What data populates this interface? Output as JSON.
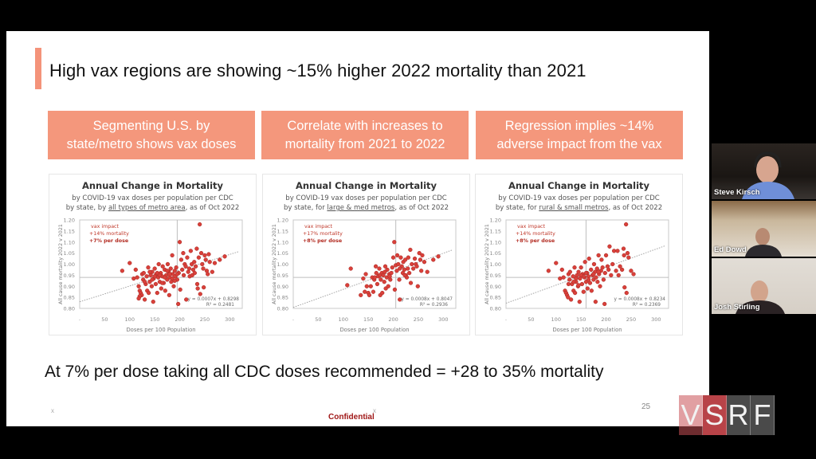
{
  "slide": {
    "title": "High vax regions are showing ~15% higher 2022 mortality than 2021",
    "boxes": [
      {
        "line1": "Segmenting U.S. by",
        "line2": "state/metro shows vax doses"
      },
      {
        "line1": "Correlate with increases to",
        "line2": "mortality from 2021 to 2022"
      },
      {
        "line1": "Regression implies ~14%",
        "line2": "adverse impact from the vax"
      }
    ],
    "bottom_text": "At 7% per dose taking all CDC doses recommended = +28 to 35% mortality",
    "footer": {
      "marker_left": "x",
      "marker_center": "x",
      "confidential": "Confidential",
      "page_number": "25"
    },
    "accent_color": "#f4977c"
  },
  "participants": [
    {
      "name": "Steve Kirsch"
    },
    {
      "name": "Ed Dowd"
    },
    {
      "name": "Josh Stirling"
    }
  ],
  "watermark": {
    "letters": [
      "V",
      "S",
      "R",
      "F"
    ]
  },
  "chart_data": [
    {
      "type": "scatter",
      "title": "Annual Change in Mortality",
      "subtitle1": "by COVID-19 vax doses per population per CDC",
      "subtitle2_pre": "by state, by ",
      "subtitle2_u": "all types of metro area",
      "subtitle2_post": ", as of Oct 2022",
      "xlabel": "Doses per 100 Population",
      "ylabel": "All cause mortality 2022 v 2021",
      "xlim": [
        0,
        325
      ],
      "ylim": [
        0.8,
        1.2
      ],
      "xticks": [
        50,
        100,
        150,
        200,
        250,
        300
      ],
      "yticks": [
        "0.80",
        "0.85",
        "0.90",
        "0.95",
        "1.00",
        "1.05",
        "1.10",
        "1.15",
        "1.20"
      ],
      "annotation": [
        "vax impact",
        "+14% mortality",
        "+7% per dose"
      ],
      "ref_x": 195,
      "ref_y": 0.94,
      "trendline": {
        "slope": 0.0007,
        "intercept": 0.8298,
        "equation": "y = 0.0007x + 0.8298",
        "r2": "R² = 0.2481"
      },
      "points": [
        [
          85,
          0.97
        ],
        [
          100,
          1.005
        ],
        [
          108,
          0.935
        ],
        [
          112,
          0.975
        ],
        [
          115,
          0.94
        ],
        [
          118,
          0.9
        ],
        [
          120,
          0.88
        ],
        [
          122,
          0.87
        ],
        [
          124,
          0.86
        ],
        [
          125,
          0.955
        ],
        [
          127,
          0.93
        ],
        [
          128,
          0.96
        ],
        [
          130,
          0.84
        ],
        [
          132,
          0.91
        ],
        [
          134,
          0.945
        ],
        [
          135,
          0.88
        ],
        [
          137,
          0.985
        ],
        [
          138,
          0.87
        ],
        [
          140,
          0.92
        ],
        [
          142,
          0.95
        ],
        [
          144,
          0.9
        ],
        [
          145,
          0.965
        ],
        [
          147,
          0.83
        ],
        [
          148,
          0.935
        ],
        [
          150,
          0.98
        ],
        [
          152,
          0.91
        ],
        [
          153,
          0.955
        ],
        [
          155,
          0.87
        ],
        [
          157,
          0.94
        ],
        [
          158,
          1.0
        ],
        [
          160,
          0.92
        ],
        [
          162,
          0.96
        ],
        [
          163,
          0.89
        ],
        [
          165,
          0.945
        ],
        [
          166,
          0.99
        ],
        [
          168,
          0.915
        ],
        [
          170,
          0.975
        ],
        [
          171,
          0.88
        ],
        [
          173,
          0.95
        ],
        [
          175,
          0.93
        ],
        [
          176,
          1.0
        ],
        [
          178,
          0.965
        ],
        [
          179,
          0.86
        ],
        [
          180,
          0.94
        ],
        [
          182,
          0.98
        ],
        [
          183,
          0.92
        ],
        [
          185,
          1.04
        ],
        [
          186,
          0.955
        ],
        [
          188,
          0.9
        ],
        [
          190,
          0.97
        ],
        [
          191,
          0.945
        ],
        [
          193,
          0.985
        ],
        [
          195,
          0.93
        ],
        [
          197,
          0.82
        ],
        [
          198,
          0.96
        ],
        [
          200,
          1.1
        ],
        [
          201,
          0.885
        ],
        [
          203,
          1.02
        ],
        [
          205,
          0.975
        ],
        [
          207,
          1.05
        ],
        [
          208,
          0.95
        ],
        [
          210,
          1.0
        ],
        [
          212,
          0.99
        ],
        [
          213,
          0.84
        ],
        [
          215,
          1.03
        ],
        [
          217,
          0.965
        ],
        [
          219,
          0.98
        ],
        [
          220,
          0.945
        ],
        [
          222,
          1.06
        ],
        [
          224,
          1.0
        ],
        [
          225,
          0.95
        ],
        [
          227,
          0.975
        ],
        [
          229,
          1.01
        ],
        [
          230,
          0.96
        ],
        [
          232,
          0.99
        ],
        [
          234,
          1.07
        ],
        [
          235,
          0.91
        ],
        [
          236,
          0.89
        ],
        [
          238,
          1.03
        ],
        [
          240,
          1.18
        ],
        [
          241,
          0.865
        ],
        [
          243,
          1.05
        ],
        [
          245,
          1.0
        ],
        [
          247,
          0.98
        ],
        [
          248,
          0.895
        ],
        [
          250,
          1.04
        ],
        [
          252,
          1.02
        ],
        [
          254,
          0.97
        ],
        [
          256,
          0.955
        ],
        [
          258,
          1.045
        ],
        [
          260,
          1.01
        ],
        [
          265,
          0.965
        ],
        [
          270,
          1.005
        ],
        [
          280,
          1.02
        ],
        [
          290,
          1.035
        ],
        [
          145,
          0.93
        ],
        [
          155,
          0.96
        ],
        [
          165,
          0.915
        ],
        [
          175,
          0.97
        ],
        [
          185,
          0.935
        ],
        [
          195,
          0.955
        ],
        [
          160,
          0.95
        ],
        [
          170,
          0.94
        ],
        [
          180,
          0.955
        ],
        [
          190,
          0.925
        ],
        [
          150,
          0.945
        ],
        [
          140,
          0.965
        ],
        [
          130,
          0.92
        ],
        [
          120,
          0.855
        ],
        [
          118,
          0.845
        ]
      ]
    },
    {
      "type": "scatter",
      "title": "Annual Change in Mortality",
      "subtitle1": "by COVID-19 vax doses per population per CDC",
      "subtitle2_pre": "by state, for ",
      "subtitle2_u": "large & med metros",
      "subtitle2_post": ", as of Oct 2022",
      "xlabel": "Doses per 100 Population",
      "ylabel": "All cause mortality 2022 v 2021",
      "xlim": [
        0,
        325
      ],
      "ylim": [
        0.8,
        1.2
      ],
      "xticks": [
        50,
        100,
        150,
        200,
        250,
        300
      ],
      "yticks": [
        "0.80",
        "0.85",
        "0.90",
        "0.95",
        "1.00",
        "1.05",
        "1.10",
        "1.15",
        "1.20"
      ],
      "annotation": [
        "vax impact",
        "+17% mortality",
        "+8% per dose"
      ],
      "ref_x": 205,
      "ref_y": 0.94,
      "trendline": {
        "slope": 0.0008,
        "intercept": 0.8047,
        "equation": "y = 0.0008x + 0.8047",
        "r2": "R² = 0.2936"
      },
      "points": [
        [
          108,
          0.905
        ],
        [
          115,
          0.98
        ],
        [
          135,
          0.86
        ],
        [
          140,
          0.935
        ],
        [
          143,
          0.875
        ],
        [
          145,
          0.955
        ],
        [
          147,
          0.9
        ],
        [
          150,
          0.87
        ],
        [
          152,
          0.86
        ],
        [
          155,
          0.9
        ],
        [
          158,
          0.94
        ],
        [
          160,
          0.875
        ],
        [
          162,
          0.93
        ],
        [
          165,
          0.99
        ],
        [
          166,
          0.96
        ],
        [
          168,
          0.91
        ],
        [
          170,
          0.945
        ],
        [
          172,
          0.98
        ],
        [
          174,
          0.86
        ],
        [
          175,
          0.93
        ],
        [
          177,
          0.96
        ],
        [
          178,
          0.87
        ],
        [
          180,
          0.95
        ],
        [
          182,
          0.92
        ],
        [
          184,
          0.99
        ],
        [
          185,
          0.89
        ],
        [
          187,
          0.94
        ],
        [
          188,
          0.975
        ],
        [
          190,
          0.9
        ],
        [
          192,
          0.955
        ],
        [
          194,
          0.93
        ],
        [
          196,
          0.96
        ],
        [
          198,
          0.985
        ],
        [
          200,
          1.03
        ],
        [
          202,
          1.1
        ],
        [
          203,
          0.885
        ],
        [
          205,
          0.995
        ],
        [
          207,
          0.97
        ],
        [
          208,
          1.04
        ],
        [
          210,
          1.0
        ],
        [
          212,
          0.93
        ],
        [
          213,
          0.84
        ],
        [
          215,
          1.03
        ],
        [
          217,
          0.99
        ],
        [
          219,
          0.96
        ],
        [
          220,
          1.01
        ],
        [
          222,
          0.975
        ],
        [
          224,
          1.02
        ],
        [
          225,
          0.95
        ],
        [
          227,
          0.94
        ],
        [
          229,
          0.98
        ],
        [
          230,
          1.03
        ],
        [
          232,
          0.96
        ],
        [
          234,
          1.065
        ],
        [
          235,
          0.915
        ],
        [
          237,
          1.0
        ],
        [
          240,
          0.98
        ],
        [
          243,
          1.025
        ],
        [
          245,
          1.0
        ],
        [
          247,
          0.99
        ],
        [
          249,
          0.9
        ],
        [
          252,
          1.05
        ],
        [
          254,
          1.02
        ],
        [
          256,
          0.97
        ],
        [
          258,
          1.04
        ],
        [
          262,
          1.01
        ],
        [
          268,
          0.965
        ],
        [
          280,
          1.02
        ],
        [
          290,
          1.035
        ],
        [
          163,
          0.94
        ],
        [
          173,
          0.95
        ],
        [
          183,
          0.965
        ],
        [
          193,
          0.945
        ],
        [
          213,
          0.98
        ],
        [
          223,
          0.95
        ]
      ]
    },
    {
      "type": "scatter",
      "title": "Annual Change in Mortality",
      "subtitle1": "by COVID-19 vax doses per population per CDC",
      "subtitle2_pre": "by state, for ",
      "subtitle2_u": "rural & small metros",
      "subtitle2_post": ", as of Oct 2022",
      "xlabel": "Doses per 100 Population",
      "ylabel": "All cause mortality 2022 v 2021",
      "xlim": [
        0,
        325
      ],
      "ylim": [
        0.8,
        1.2
      ],
      "xticks": [
        50,
        100,
        150,
        200,
        250,
        300
      ],
      "yticks": [
        "0.80",
        "0.85",
        "0.90",
        "0.95",
        "1.00",
        "1.05",
        "1.10",
        "1.15",
        "1.20"
      ],
      "annotation": [
        "vax impact",
        "+14% mortality",
        "+8% per dose"
      ],
      "ref_x": 160,
      "ref_y": 0.94,
      "trendline": {
        "slope": 0.0008,
        "intercept": 0.8234,
        "equation": "y = 0.0008x + 0.8234",
        "r2": "R² = 0.2369"
      },
      "points": [
        [
          85,
          0.97
        ],
        [
          100,
          1.005
        ],
        [
          108,
          0.935
        ],
        [
          112,
          0.975
        ],
        [
          115,
          0.94
        ],
        [
          118,
          0.88
        ],
        [
          120,
          0.87
        ],
        [
          122,
          0.86
        ],
        [
          124,
          0.85
        ],
        [
          125,
          0.955
        ],
        [
          127,
          0.93
        ],
        [
          128,
          0.965
        ],
        [
          130,
          0.84
        ],
        [
          132,
          0.91
        ],
        [
          134,
          0.945
        ],
        [
          135,
          0.88
        ],
        [
          137,
          0.985
        ],
        [
          138,
          0.87
        ],
        [
          140,
          0.92
        ],
        [
          142,
          0.95
        ],
        [
          144,
          0.9
        ],
        [
          145,
          0.965
        ],
        [
          147,
          0.83
        ],
        [
          148,
          0.935
        ],
        [
          150,
          0.985
        ],
        [
          152,
          0.91
        ],
        [
          153,
          0.955
        ],
        [
          155,
          0.875
        ],
        [
          157,
          0.94
        ],
        [
          158,
          1.01
        ],
        [
          160,
          0.92
        ],
        [
          162,
          0.96
        ],
        [
          163,
          0.89
        ],
        [
          165,
          0.945
        ],
        [
          166,
          1.025
        ],
        [
          168,
          0.915
        ],
        [
          170,
          0.975
        ],
        [
          171,
          0.88
        ],
        [
          173,
          0.95
        ],
        [
          175,
          0.93
        ],
        [
          176,
          1.0
        ],
        [
          178,
          0.965
        ],
        [
          179,
          0.83
        ],
        [
          180,
          0.94
        ],
        [
          182,
          0.98
        ],
        [
          183,
          0.92
        ],
        [
          185,
          1.04
        ],
        [
          186,
          0.955
        ],
        [
          188,
          0.9
        ],
        [
          190,
          0.97
        ],
        [
          191,
          1.02
        ],
        [
          193,
          0.985
        ],
        [
          195,
          0.93
        ],
        [
          197,
          0.82
        ],
        [
          198,
          0.96
        ],
        [
          200,
          1.04
        ],
        [
          203,
          0.99
        ],
        [
          205,
          0.975
        ],
        [
          207,
          1.08
        ],
        [
          210,
          0.95
        ],
        [
          213,
          1.0
        ],
        [
          216,
          1.06
        ],
        [
          220,
          0.97
        ],
        [
          223,
          1.06
        ],
        [
          225,
          0.95
        ],
        [
          228,
          0.99
        ],
        [
          232,
          0.975
        ],
        [
          235,
          1.07
        ],
        [
          236,
          1.04
        ],
        [
          237,
          0.895
        ],
        [
          240,
          1.18
        ],
        [
          241,
          0.87
        ],
        [
          243,
          1.05
        ],
        [
          245,
          1.03
        ],
        [
          250,
          0.97
        ],
        [
          255,
          0.955
        ],
        [
          135,
          0.92
        ],
        [
          145,
          0.905
        ],
        [
          155,
          0.945
        ],
        [
          165,
          0.93
        ],
        [
          175,
          0.955
        ],
        [
          185,
          0.965
        ],
        [
          125,
          0.91
        ],
        [
          140,
          0.935
        ],
        [
          150,
          0.95
        ],
        [
          160,
          0.96
        ]
      ]
    }
  ]
}
